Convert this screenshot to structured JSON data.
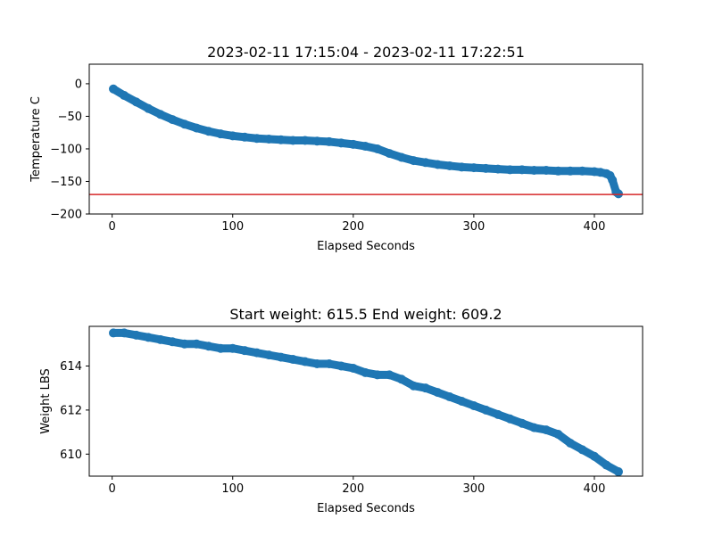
{
  "chart_data": [
    {
      "type": "scatter",
      "title": "2023-02-11 17:15:04 - 2023-02-11 17:22:51",
      "xlabel": "Elapsed Seconds",
      "ylabel": "Temperature C",
      "xlim": [
        -19,
        440
      ],
      "ylim": [
        -200,
        30
      ],
      "xticks": [
        0,
        100,
        200,
        300,
        400
      ],
      "yticks": [
        -200,
        -150,
        -100,
        -50,
        0
      ],
      "tick_labels_x": [
        "0",
        "100",
        "200",
        "300",
        "400"
      ],
      "tick_labels_y": [
        "−200",
        "−150",
        "−100",
        "−50",
        "0"
      ],
      "marker_color": "#1f77b4",
      "reference_line": {
        "y": -170,
        "color": "#d62728"
      },
      "x": [
        1,
        10,
        20,
        30,
        40,
        50,
        60,
        70,
        80,
        90,
        100,
        110,
        120,
        130,
        140,
        150,
        160,
        170,
        180,
        190,
        200,
        210,
        220,
        230,
        240,
        250,
        260,
        270,
        280,
        290,
        300,
        310,
        320,
        330,
        340,
        350,
        360,
        370,
        380,
        390,
        400,
        405,
        410,
        413,
        415,
        418,
        420
      ],
      "y": [
        -8,
        -18,
        -28,
        -38,
        -47,
        -55,
        -62,
        -68,
        -73,
        -77,
        -80,
        -82,
        -84,
        -85,
        -86,
        -87,
        -87,
        -88,
        -89,
        -91,
        -93,
        -96,
        -100,
        -107,
        -113,
        -118,
        -121,
        -124,
        -126,
        -128,
        -129,
        -130,
        -131,
        -132,
        -132,
        -133,
        -133,
        -134,
        -134,
        -134,
        -135,
        -136,
        -138,
        -141,
        -148,
        -166,
        -169
      ]
    },
    {
      "type": "scatter",
      "title": "Start weight: 615.5 End weight: 609.2",
      "xlabel": "Elapsed Seconds",
      "ylabel": "Weight LBS",
      "xlim": [
        -19,
        440
      ],
      "ylim": [
        609.0,
        615.8
      ],
      "xticks": [
        0,
        100,
        200,
        300,
        400
      ],
      "yticks": [
        610,
        612,
        614
      ],
      "tick_labels_x": [
        "0",
        "100",
        "200",
        "300",
        "400"
      ],
      "tick_labels_y": [
        "610",
        "612",
        "614"
      ],
      "marker_color": "#1f77b4",
      "x": [
        1,
        10,
        20,
        30,
        40,
        50,
        60,
        70,
        80,
        90,
        100,
        110,
        120,
        130,
        140,
        150,
        160,
        170,
        180,
        190,
        200,
        210,
        220,
        230,
        240,
        250,
        260,
        270,
        280,
        290,
        300,
        310,
        320,
        330,
        340,
        350,
        360,
        370,
        380,
        390,
        400,
        410,
        420
      ],
      "y": [
        615.5,
        615.5,
        615.4,
        615.3,
        615.2,
        615.1,
        615.0,
        615.0,
        614.9,
        614.8,
        614.8,
        614.7,
        614.6,
        614.5,
        614.4,
        614.3,
        614.2,
        614.1,
        614.1,
        614.0,
        613.9,
        613.7,
        613.6,
        613.6,
        613.4,
        613.1,
        613.0,
        612.8,
        612.6,
        612.4,
        612.2,
        612.0,
        611.8,
        611.6,
        611.4,
        611.2,
        611.1,
        610.9,
        610.5,
        610.2,
        609.9,
        609.5,
        609.2
      ]
    }
  ]
}
